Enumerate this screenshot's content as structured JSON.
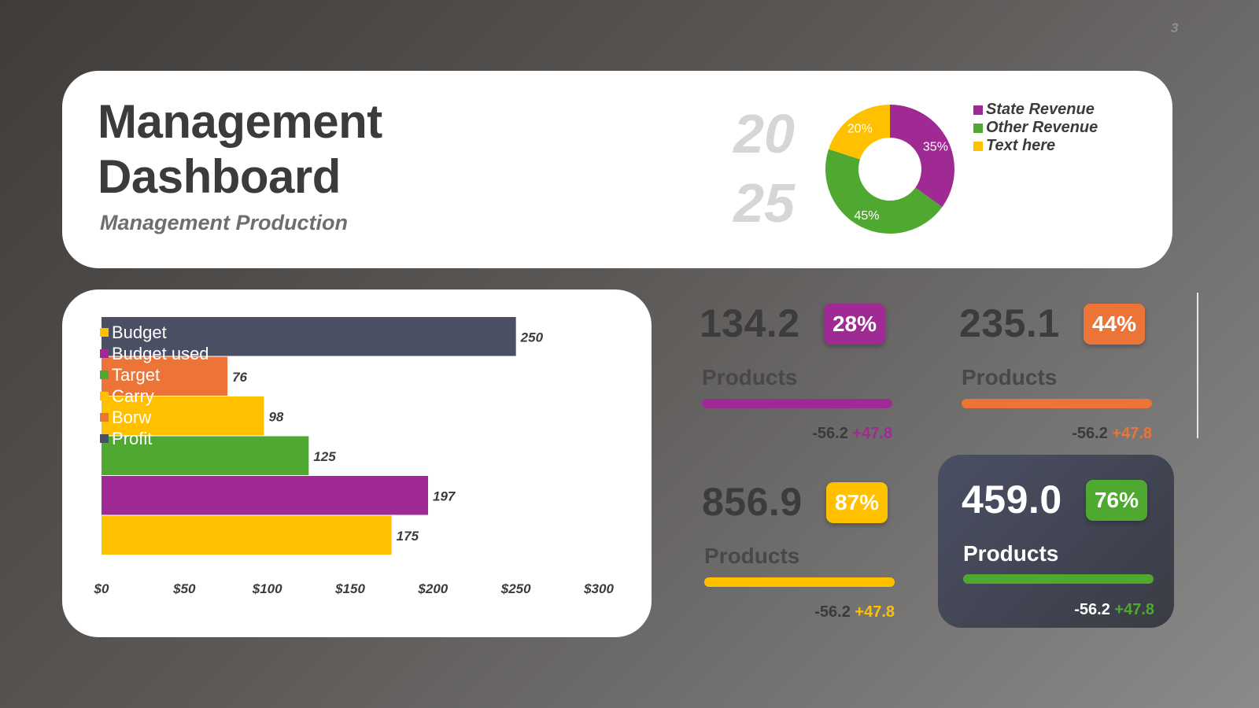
{
  "page_number": "3",
  "header": {
    "title_line1": "Management",
    "title_line2": "Dashboard",
    "subtitle": "Management Production",
    "year_line1": "20",
    "year_line2": "25"
  },
  "colors": {
    "purple": "#a02a94",
    "green": "#4fa830",
    "yellow": "#ffc000",
    "orange": "#ec7436",
    "navy": "#4a4f64"
  },
  "chart_data": [
    {
      "type": "pie",
      "variant": "donut",
      "slices": [
        {
          "label": "State Revenue",
          "value": 35,
          "display": "35%",
          "color": "#a02a94"
        },
        {
          "label": "Other Revenue",
          "value": 45,
          "display": "45%",
          "color": "#4fa830"
        },
        {
          "label": "Text here",
          "value": 20,
          "display": "20%",
          "color": "#ffc000"
        }
      ],
      "legend_position": "right"
    },
    {
      "type": "bar",
      "orientation": "horizontal",
      "legend": [
        {
          "label": "Budget",
          "color": "#ffc000"
        },
        {
          "label": "Budget used",
          "color": "#a02a94"
        },
        {
          "label": "Target",
          "color": "#4fa830"
        },
        {
          "label": "Carry",
          "color": "#ffc000"
        },
        {
          "label": "Borw",
          "color": "#ec7436"
        },
        {
          "label": "Profit",
          "color": "#4a4f64"
        }
      ],
      "bars": [
        {
          "value": 250,
          "label": "250",
          "color": "#4a4f64"
        },
        {
          "value": 76,
          "label": "76",
          "color": "#ec7436"
        },
        {
          "value": 98,
          "label": "98",
          "color": "#ffc000"
        },
        {
          "value": 125,
          "label": "125",
          "color": "#4fa830"
        },
        {
          "value": 197,
          "label": "197",
          "color": "#a02a94"
        },
        {
          "value": 175,
          "label": "175",
          "color": "#ffc000"
        }
      ],
      "x_ticks": [
        "$0",
        "$50",
        "$100",
        "$150",
        "$200",
        "$250",
        "$300"
      ],
      "xlim": [
        0,
        300
      ],
      "grid": false,
      "legend_position": "top-left overlay"
    }
  ],
  "kpis": [
    {
      "value": "134.2",
      "badge": "28%",
      "label": "Products",
      "neg": "-56.2",
      "pos": "+47.8",
      "color": "#a02a94",
      "pos_color": "#a02a94",
      "dark": false
    },
    {
      "value": "235.1",
      "badge": "44%",
      "label": "Products",
      "neg": "-56.2",
      "pos": "+47.8",
      "color": "#ec7436",
      "pos_color": "#ec7436",
      "dark": false
    },
    {
      "value": "856.9",
      "badge": "87%",
      "label": "Products",
      "neg": "-56.2",
      "pos": "+47.8",
      "color": "#ffc000",
      "pos_color": "#ffc000",
      "dark": false
    },
    {
      "value": "459.0",
      "badge": "76%",
      "label": "Products",
      "neg": "-56.2",
      "pos": "+47.8",
      "color": "#4fa830",
      "pos_color": "#4fa830",
      "dark": true
    }
  ]
}
